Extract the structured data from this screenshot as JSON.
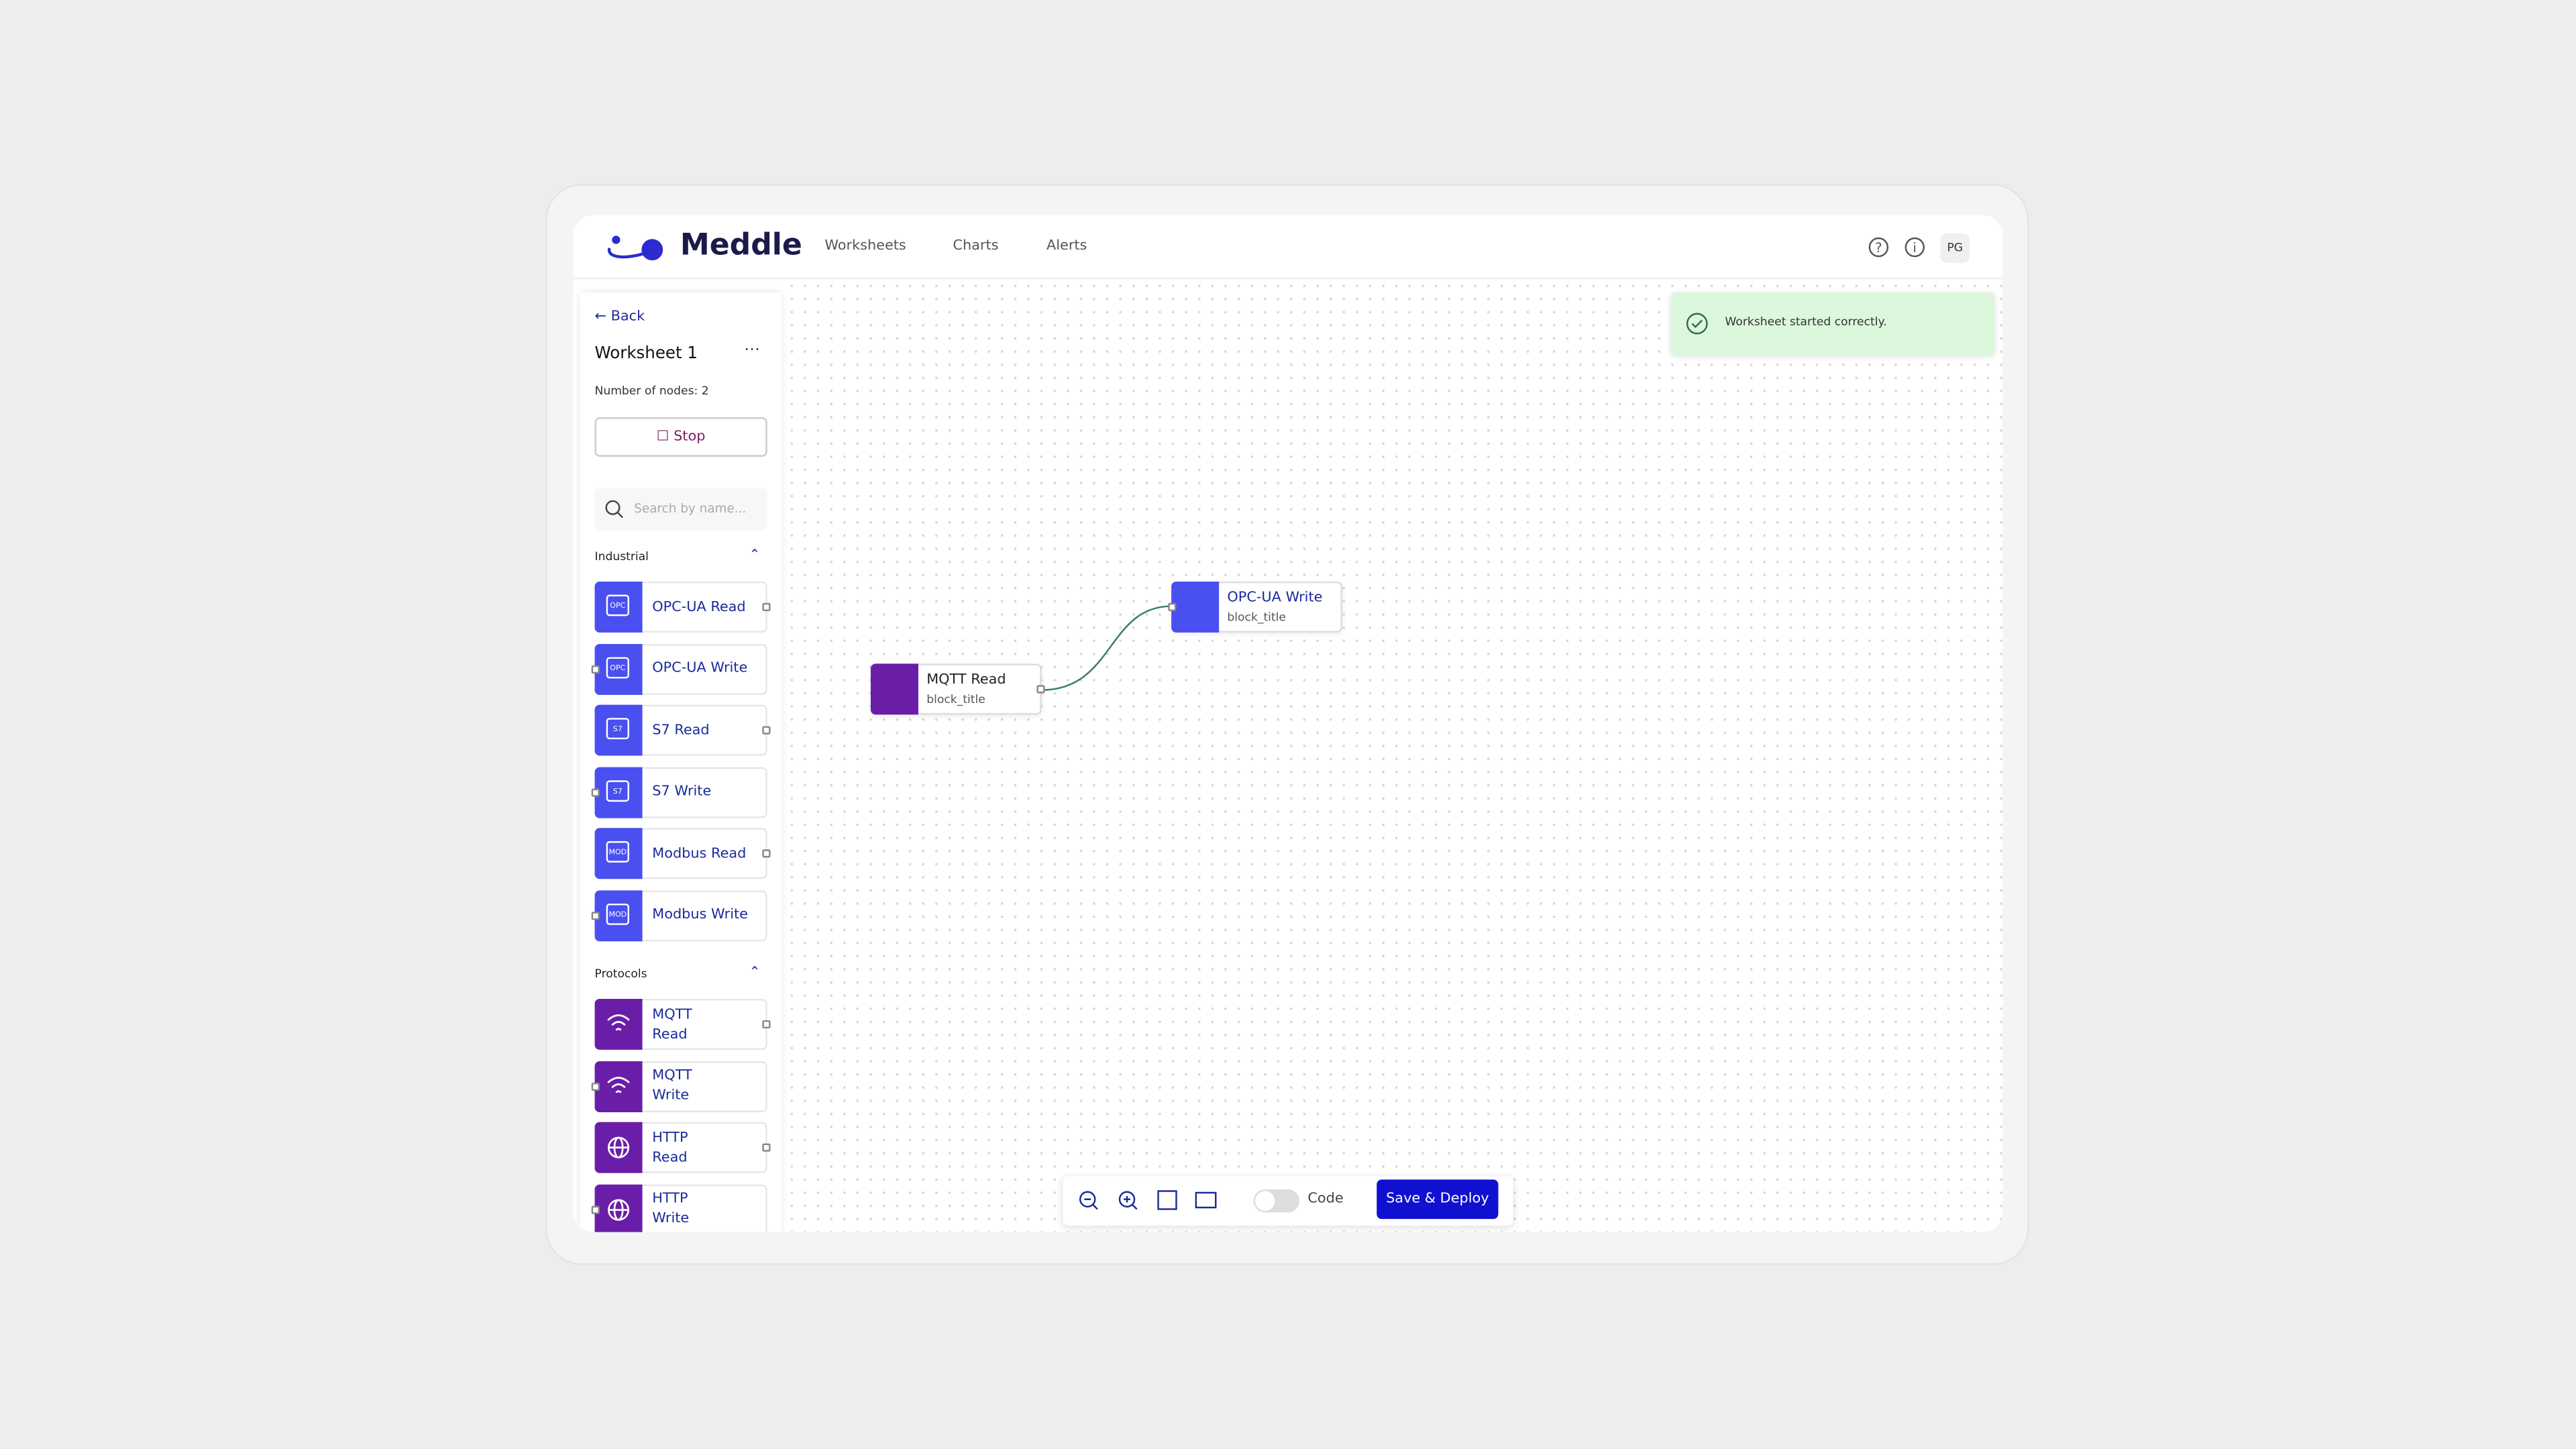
{
  "header": {
    "brand": "Meddle",
    "nav": [
      "Worksheets",
      "Charts",
      "Alerts"
    ],
    "avatar": "PG"
  },
  "sidebar": {
    "back": "Back",
    "title": "Worksheet 1",
    "node_count": "Number of nodes: 2",
    "stop": "Stop",
    "search_placeholder": "Search by name...",
    "groups": [
      {
        "name": "Industrial",
        "items": [
          {
            "icon": "OPC",
            "label": "OPC-UA Read"
          },
          {
            "icon": "OPC",
            "label": "OPC-UA Write"
          },
          {
            "icon": "S7",
            "label": "S7 Read"
          },
          {
            "icon": "S7",
            "label": "S7 Write"
          },
          {
            "icon": "MOD",
            "label": "Modbus Read"
          },
          {
            "icon": "MOD",
            "label": "Modbus Write"
          }
        ]
      },
      {
        "name": "Protocols",
        "items": [
          {
            "label": "MQTT Read"
          },
          {
            "label": "MQTT Write"
          },
          {
            "label": "HTTP Read"
          },
          {
            "label": "HTTP Write"
          }
        ]
      }
    ]
  },
  "canvas": {
    "nodes": [
      {
        "title": "MQTT Read",
        "subtitle": "block_title"
      },
      {
        "title": "OPC-UA Write",
        "subtitle": "block_title"
      }
    ]
  },
  "toast": "Worksheet started correctly.",
  "toolbar": {
    "code": "Code",
    "deploy": "Save & Deploy"
  }
}
